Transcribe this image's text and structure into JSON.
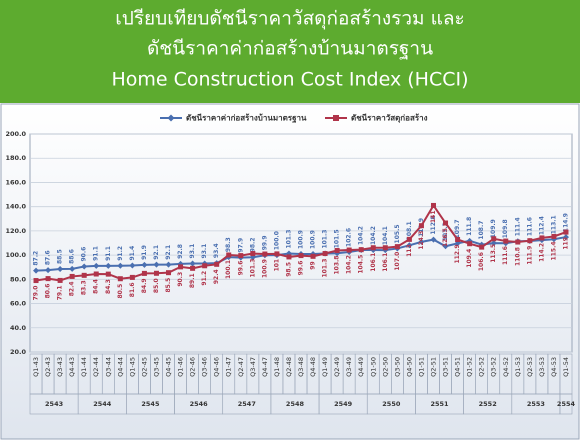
{
  "header": {
    "lines": [
      "เปรียบเทียบดัชนีราคาวัสดุก่อสร้างรวม และ",
      "ดัชนีราคาค่าก่อสร้างบ้านมาตรฐาน",
      "Home Construction Cost Index (HCCI)"
    ]
  },
  "chart_data": {
    "type": "line",
    "categories": [
      "Q1-43",
      "Q2-43",
      "Q3-43",
      "Q4-43",
      "Q1-44",
      "Q2-44",
      "Q3-44",
      "Q4-44",
      "Q1-45",
      "Q2-45",
      "Q3-45",
      "Q4-45",
      "Q1-46",
      "Q2-46",
      "Q3-46",
      "Q4-46",
      "Q1-47",
      "Q2-47",
      "Q3-47",
      "Q4-47",
      "Q1-48",
      "Q2-48",
      "Q3-48",
      "Q4-48",
      "Q1-49",
      "Q2-49",
      "Q3-49",
      "Q4-49",
      "Q1-50",
      "Q2-50",
      "Q3-50",
      "Q4-50",
      "Q1-51",
      "Q2-51",
      "Q3-51",
      "Q4-51",
      "Q1-52",
      "Q2-52",
      "Q3-52",
      "Q4-52",
      "Q1-53",
      "Q2-53",
      "Q3-53",
      "Q4-53",
      "Q1-54"
    ],
    "year_groups": [
      "2543",
      "2544",
      "2545",
      "2546",
      "2547",
      "2548",
      "2549",
      "2550",
      "2551",
      "2552",
      "2553",
      "2554"
    ],
    "series": [
      {
        "name": "ดัชนีราคาค่าก่อสร้างบ้านมาตรฐาน",
        "color": "#4a6fb0",
        "marker": "diamond",
        "values": [
          87.2,
          87.6,
          88.5,
          88.6,
          90.6,
          91.1,
          91.1,
          91.2,
          91.4,
          91.9,
          92.1,
          92.1,
          92.8,
          93.1,
          93.1,
          93.4,
          98.3,
          97.9,
          98.2,
          99.9,
          100.0,
          101.3,
          100.9,
          100.9,
          101.3,
          101.5,
          102.6,
          104.2,
          104.2,
          104.1,
          105.5,
          108.1,
          110.9,
          112.8,
          107.3,
          109.7,
          111.8,
          108.7,
          109.9,
          109.8,
          111.4,
          111.6,
          112.4,
          113.1,
          114.9
        ],
        "value_labels": [
          "87.2",
          "87.6",
          "88.5",
          "88.6",
          "90.6",
          "91.1",
          "91.1",
          "91.2",
          "91.4",
          "91.9",
          "92.1",
          "92.1",
          "92.8",
          "93.1",
          "93.1",
          "93.4",
          "98.3",
          "97.9",
          "98.2",
          "99.9",
          "100.0",
          "101.3",
          "100.9",
          "100.9",
          "101.3",
          "101.5",
          "102.6",
          "104.2",
          "104.2",
          "104.1",
          "105.5",
          "108.1",
          "110.9",
          "112.8",
          "107.3",
          "109.7",
          "111.8",
          "108.7",
          "109.9",
          "109.8",
          "111.4",
          "111.6",
          "112.4",
          "113.1",
          "114.9"
        ]
      },
      {
        "name": "ดัชนีราคาวัสดุก่อสร้าง",
        "color": "#b0344a",
        "marker": "square",
        "values": [
          79.0,
          80.6,
          79.1,
          82.4,
          83.3,
          84.4,
          84.3,
          80.5,
          81.6,
          84.9,
          85.0,
          85.5,
          90.3,
          89.1,
          91.2,
          92.4,
          100.1,
          99.6,
          101.3,
          100.9,
          101,
          98.5,
          99.6,
          99,
          101.3,
          103.8,
          104.2,
          104.5,
          106.1,
          106.1,
          107.0,
          113,
          124.3,
          141,
          126.5,
          112.9,
          109.4,
          106.6,
          113.5,
          111.6,
          110.8,
          111.9,
          114.2,
          115.4,
          119
        ],
        "value_labels": [
          "79.0",
          "80.6",
          "79.1",
          "82.4",
          "83.3",
          "84.4",
          "84.3",
          "80.5",
          "81.6",
          "84.9",
          "85.0",
          "85.5",
          "90.3",
          "89.1",
          "91.2",
          "92.4",
          "100.1",
          "99.6",
          "101.3",
          "100.9",
          "101",
          "98.5",
          "99.6",
          "99",
          "101.3",
          "103.8",
          "104.2",
          "104.5",
          "106.1",
          "106.1",
          "107.0",
          "113",
          "124.3",
          "141",
          "126.5",
          "112.9",
          "109.4",
          "106.6",
          "113.5",
          "111.6",
          "110.8",
          "111.9",
          "114.2",
          "115.4",
          "119"
        ]
      }
    ],
    "ylim": [
      20,
      200
    ],
    "yticks": [
      {
        "value": 20,
        "label": "20.0"
      },
      {
        "value": 40,
        "label": "40.0"
      },
      {
        "value": 60,
        "label": "60.0"
      },
      {
        "value": 80,
        "label": "80.0"
      },
      {
        "value": 100,
        "label": "100.0"
      },
      {
        "value": 120,
        "label": "120.0"
      },
      {
        "value": 140,
        "label": "140.0"
      },
      {
        "value": 160,
        "label": "160.0"
      },
      {
        "value": 180,
        "label": "180.0"
      },
      {
        "value": 200,
        "label": "200.0"
      }
    ],
    "grid": true
  }
}
